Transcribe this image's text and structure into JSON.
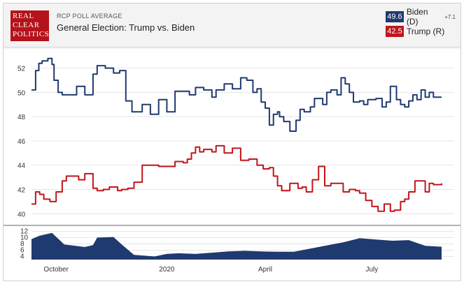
{
  "header": {
    "logo_lines": [
      "REAL",
      "CLEAR",
      "POLITICS"
    ],
    "kicker": "RCP POLL AVERAGE",
    "title": "General Election: Trump vs. Biden"
  },
  "legend": {
    "biden": {
      "value": "49.6",
      "label": "Biden (D)",
      "spread": "+7.1",
      "color": "#1f3a6e"
    },
    "trump": {
      "value": "42.5",
      "label": "Trump (R)",
      "color": "#c0161c"
    }
  },
  "chart_data": [
    {
      "type": "line",
      "ylim": [
        39.5,
        53.3
      ],
      "y_ticks": [
        40,
        42,
        44,
        46,
        48,
        50,
        52
      ],
      "x_ticks": [
        {
          "label": "October",
          "t": 0.06
        },
        {
          "label": "2020",
          "t": 0.33
        },
        {
          "label": "April",
          "t": 0.57
        },
        {
          "label": "July",
          "t": 0.83
        }
      ],
      "series": [
        {
          "name": "Biden (D)",
          "color": "#1f3a6e",
          "t": [
            0.0,
            0.01,
            0.018,
            0.026,
            0.04,
            0.05,
            0.055,
            0.065,
            0.075,
            0.085,
            0.11,
            0.13,
            0.15,
            0.16,
            0.17,
            0.18,
            0.2,
            0.215,
            0.23,
            0.245,
            0.26,
            0.27,
            0.28,
            0.29,
            0.31,
            0.33,
            0.35,
            0.36,
            0.37,
            0.385,
            0.4,
            0.42,
            0.44,
            0.45,
            0.47,
            0.49,
            0.51,
            0.525,
            0.54,
            0.55,
            0.56,
            0.57,
            0.58,
            0.59,
            0.6,
            0.605,
            0.615,
            0.63,
            0.645,
            0.655,
            0.665,
            0.68,
            0.69,
            0.7,
            0.71,
            0.72,
            0.73,
            0.745,
            0.755,
            0.765,
            0.775,
            0.785,
            0.8,
            0.81,
            0.82,
            0.83,
            0.84,
            0.855,
            0.865,
            0.875,
            0.89,
            0.9,
            0.91,
            0.92,
            0.93,
            0.94,
            0.95,
            0.96,
            0.97,
            0.98,
            0.99,
            1.0
          ],
          "y": [
            50.2,
            51.8,
            52.4,
            52.6,
            52.8,
            52.3,
            51.0,
            50.0,
            49.8,
            49.8,
            50.5,
            49.8,
            51.5,
            52.2,
            52.2,
            52.0,
            51.6,
            51.8,
            49.3,
            48.4,
            48.4,
            49.0,
            49.0,
            48.2,
            49.4,
            48.4,
            50.1,
            50.1,
            50.1,
            49.8,
            50.4,
            50.2,
            49.6,
            50.2,
            50.7,
            50.3,
            51.2,
            51.0,
            50.0,
            50.3,
            49.2,
            48.7,
            47.3,
            48.2,
            48.4,
            48.0,
            47.6,
            46.8,
            47.7,
            48.6,
            48.4,
            48.8,
            49.5,
            49.5,
            49.0,
            50.0,
            50.2,
            49.8,
            51.2,
            50.7,
            50.0,
            49.2,
            49.3,
            49.0,
            49.4,
            49.4,
            49.5,
            48.8,
            49.2,
            50.5,
            49.4,
            49.0,
            48.8,
            49.3,
            49.8,
            49.4,
            50.2,
            49.6,
            50.0,
            49.6,
            49.6,
            49.6
          ]
        },
        {
          "name": "Trump (R)",
          "color": "#c0161c",
          "t": [
            0.0,
            0.01,
            0.02,
            0.03,
            0.045,
            0.06,
            0.075,
            0.085,
            0.1,
            0.115,
            0.13,
            0.15,
            0.16,
            0.175,
            0.19,
            0.21,
            0.22,
            0.235,
            0.25,
            0.27,
            0.29,
            0.31,
            0.33,
            0.35,
            0.37,
            0.38,
            0.39,
            0.4,
            0.41,
            0.42,
            0.44,
            0.45,
            0.47,
            0.49,
            0.51,
            0.53,
            0.55,
            0.565,
            0.58,
            0.59,
            0.6,
            0.61,
            0.63,
            0.65,
            0.66,
            0.67,
            0.685,
            0.7,
            0.715,
            0.73,
            0.745,
            0.76,
            0.775,
            0.79,
            0.8,
            0.815,
            0.83,
            0.845,
            0.86,
            0.875,
            0.885,
            0.9,
            0.91,
            0.92,
            0.935,
            0.95,
            0.96,
            0.97,
            0.98,
            0.99,
            1.0
          ],
          "y": [
            40.8,
            41.8,
            41.6,
            41.2,
            41.0,
            41.8,
            42.7,
            43.1,
            43.1,
            42.8,
            43.3,
            42.1,
            41.9,
            42.0,
            42.2,
            41.9,
            42.0,
            42.1,
            42.6,
            44.0,
            44.0,
            43.9,
            43.9,
            44.3,
            44.2,
            44.5,
            45.0,
            45.5,
            45.1,
            45.3,
            45.1,
            45.6,
            45.0,
            45.4,
            44.4,
            44.5,
            44.0,
            43.7,
            43.8,
            43.1,
            42.3,
            41.9,
            42.5,
            42.1,
            42.2,
            41.8,
            42.8,
            43.9,
            42.3,
            42.5,
            42.5,
            41.8,
            42.0,
            41.9,
            41.7,
            41.1,
            40.6,
            40.2,
            40.8,
            40.2,
            40.3,
            41.0,
            41.2,
            41.8,
            42.7,
            42.7,
            41.8,
            42.5,
            42.4,
            42.4,
            42.5
          ]
        }
      ]
    },
    {
      "type": "area",
      "ylim": [
        3,
        13
      ],
      "y_ticks": [
        4,
        6,
        8,
        10,
        12
      ],
      "series": [
        {
          "name": "Spread",
          "color": "#1f3a6e",
          "t": [
            0.0,
            0.02,
            0.05,
            0.08,
            0.1,
            0.13,
            0.15,
            0.16,
            0.2,
            0.22,
            0.25,
            0.28,
            0.3,
            0.33,
            0.36,
            0.4,
            0.44,
            0.48,
            0.52,
            0.56,
            0.6,
            0.64,
            0.68,
            0.72,
            0.76,
            0.8,
            0.84,
            0.88,
            0.92,
            0.96,
            1.0
          ],
          "y": [
            9.5,
            10.6,
            11.5,
            7.8,
            7.5,
            7.0,
            7.6,
            10.0,
            10.2,
            7.8,
            4.5,
            4.2,
            4.0,
            4.8,
            5.0,
            4.8,
            5.2,
            5.6,
            5.8,
            5.6,
            5.5,
            5.5,
            6.5,
            7.5,
            8.5,
            9.8,
            9.4,
            9.0,
            9.2,
            7.4,
            7.1
          ]
        }
      ]
    }
  ]
}
